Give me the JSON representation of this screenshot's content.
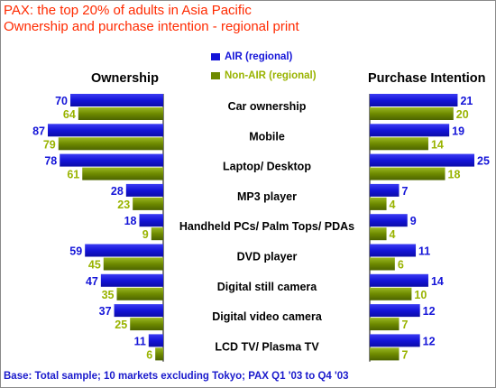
{
  "title_line1": "PAX: the top 20% of adults in Asia Pacific",
  "title_line2": "Ownership and purchase intention - regional print",
  "footnote": "Base: Total sample; 10 markets excluding Tokyo; PAX Q1 '03 to Q4 '03",
  "colors": {
    "title": "#ff2a00",
    "air": "#1414d8",
    "nonair": "#6e8a00",
    "nonair_text": "#99b300",
    "footnote": "#1a1acc"
  },
  "chart_data": {
    "type": "bar",
    "orientation": "horizontal",
    "legend": {
      "placement": "top-center",
      "entries": [
        "AIR (regional)",
        "Non-AIR (regional)"
      ]
    },
    "categories": [
      "Car ownership",
      "Mobile",
      "Laptop/ Desktop",
      "MP3 player",
      "Handheld PCs/ Palm Tops/ PDAs",
      "DVD player",
      "Digital still camera",
      "Digital video camera",
      "LCD TV/ Plasma TV"
    ],
    "panels": [
      {
        "title": "Ownership",
        "direction": "leftward",
        "xlim": [
          0,
          87
        ],
        "series": [
          {
            "name": "AIR (regional)",
            "values": [
              70,
              87,
              78,
              28,
              18,
              59,
              47,
              37,
              11
            ]
          },
          {
            "name": "Non-AIR (regional)",
            "values": [
              64,
              79,
              61,
              23,
              9,
              45,
              35,
              25,
              6
            ]
          }
        ]
      },
      {
        "title": "Purchase Intention",
        "direction": "rightward",
        "xlim": [
          0,
          25
        ],
        "series": [
          {
            "name": "AIR (regional)",
            "values": [
              21,
              19,
              25,
              7,
              9,
              11,
              14,
              12,
              12
            ]
          },
          {
            "name": "Non-AIR (regional)",
            "values": [
              20,
              14,
              18,
              4,
              4,
              6,
              10,
              7,
              7
            ]
          }
        ]
      }
    ]
  }
}
